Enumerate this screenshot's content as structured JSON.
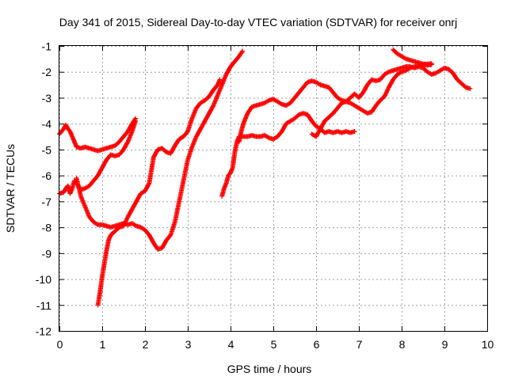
{
  "chart_data": {
    "type": "scatter",
    "title": "Day 341 of 2015, Sidereal Day-to-day VTEC variation (SDTVAR) for receiver onrj",
    "xlabel": "GPS time / hours",
    "ylabel": "SDTVAR / TECUs",
    "xlim": [
      0,
      10
    ],
    "ylim": [
      -12,
      -1
    ],
    "xticks": [
      "0",
      "1",
      "2",
      "3",
      "4",
      "5",
      "6",
      "7",
      "8",
      "9",
      "10"
    ],
    "yticks": [
      "-12",
      "-11",
      "-10",
      "-9",
      "-8",
      "-7",
      "-6",
      "-5",
      "-4",
      "-3",
      "-2",
      "-1"
    ],
    "grid": true,
    "marker": "+",
    "color": "#ff0000",
    "series": [
      {
        "tracks": [
          [
            [
              0.0,
              -4.4
            ],
            [
              0.1,
              -4.2
            ],
            [
              0.15,
              -4.05
            ],
            [
              0.2,
              -4.2
            ],
            [
              0.25,
              -4.3
            ],
            [
              0.3,
              -4.5
            ],
            [
              0.35,
              -4.7
            ],
            [
              0.4,
              -4.9
            ],
            [
              0.5,
              -4.95
            ],
            [
              0.6,
              -4.9
            ],
            [
              0.7,
              -4.95
            ],
            [
              0.8,
              -5.0
            ],
            [
              0.9,
              -5.05
            ],
            [
              1.0,
              -5.0
            ],
            [
              1.1,
              -4.95
            ],
            [
              1.2,
              -4.9
            ],
            [
              1.3,
              -4.85
            ],
            [
              1.4,
              -4.7
            ],
            [
              1.5,
              -4.5
            ],
            [
              1.6,
              -4.3
            ],
            [
              1.7,
              -4.0
            ],
            [
              1.78,
              -3.8
            ]
          ],
          [
            [
              0.0,
              -6.7
            ],
            [
              0.1,
              -6.65
            ],
            [
              0.15,
              -6.5
            ],
            [
              0.2,
              -6.4
            ],
            [
              0.25,
              -6.7
            ],
            [
              0.3,
              -6.5
            ],
            [
              0.35,
              -6.2
            ],
            [
              0.4,
              -6.3
            ],
            [
              0.5,
              -6.55
            ],
            [
              0.6,
              -6.5
            ],
            [
              0.7,
              -6.4
            ],
            [
              0.8,
              -6.2
            ],
            [
              0.9,
              -6.0
            ],
            [
              1.0,
              -5.7
            ],
            [
              1.1,
              -5.4
            ],
            [
              1.2,
              -5.2
            ],
            [
              1.3,
              -5.25
            ],
            [
              1.4,
              -5.2
            ],
            [
              1.5,
              -5.0
            ],
            [
              1.6,
              -4.7
            ],
            [
              1.7,
              -4.3
            ],
            [
              1.78,
              -3.9
            ]
          ],
          [
            [
              0.4,
              -6.1
            ],
            [
              0.5,
              -6.8
            ],
            [
              0.6,
              -7.2
            ],
            [
              0.7,
              -7.6
            ],
            [
              0.8,
              -7.8
            ],
            [
              0.9,
              -7.9
            ],
            [
              1.0,
              -7.9
            ],
            [
              1.1,
              -7.95
            ],
            [
              1.2,
              -8.0
            ],
            [
              1.3,
              -7.95
            ],
            [
              1.4,
              -7.9
            ],
            [
              1.5,
              -7.85
            ],
            [
              1.6,
              -7.9
            ],
            [
              1.7,
              -7.85
            ],
            [
              1.8,
              -7.95
            ],
            [
              1.9,
              -8.0
            ],
            [
              2.0,
              -8.1
            ],
            [
              2.1,
              -8.3
            ],
            [
              2.2,
              -8.6
            ],
            [
              2.3,
              -8.85
            ],
            [
              2.4,
              -8.8
            ],
            [
              2.5,
              -8.5
            ],
            [
              2.6,
              -8.3
            ],
            [
              2.7,
              -7.8
            ],
            [
              2.8,
              -7.0
            ],
            [
              2.9,
              -6.2
            ],
            [
              3.0,
              -5.4
            ],
            [
              3.1,
              -4.9
            ],
            [
              3.2,
              -4.5
            ],
            [
              3.3,
              -4.2
            ],
            [
              3.4,
              -3.9
            ],
            [
              3.5,
              -3.6
            ],
            [
              3.6,
              -3.3
            ],
            [
              3.7,
              -2.9
            ],
            [
              3.8,
              -2.5
            ],
            [
              3.9,
              -2.1
            ],
            [
              4.0,
              -1.8
            ],
            [
              4.1,
              -1.6
            ],
            [
              4.2,
              -1.4
            ],
            [
              4.28,
              -1.2
            ]
          ],
          [
            [
              0.9,
              -11.0
            ],
            [
              0.95,
              -10.5
            ],
            [
              1.0,
              -9.9
            ],
            [
              1.05,
              -9.4
            ],
            [
              1.1,
              -8.9
            ],
            [
              1.15,
              -8.5
            ],
            [
              1.2,
              -8.3
            ],
            [
              1.3,
              -8.15
            ],
            [
              1.4,
              -8.0
            ],
            [
              1.5,
              -7.95
            ],
            [
              1.6,
              -7.6
            ],
            [
              1.7,
              -7.3
            ],
            [
              1.8,
              -7.0
            ],
            [
              1.9,
              -6.7
            ],
            [
              2.0,
              -6.6
            ],
            [
              2.1,
              -6.3
            ],
            [
              2.15,
              -5.8
            ],
            [
              2.2,
              -5.3
            ],
            [
              2.3,
              -5.0
            ],
            [
              2.4,
              -4.95
            ],
            [
              2.5,
              -5.1
            ],
            [
              2.6,
              -5.15
            ],
            [
              2.7,
              -4.85
            ],
            [
              2.8,
              -4.6
            ],
            [
              2.9,
              -4.5
            ],
            [
              3.0,
              -4.3
            ],
            [
              3.1,
              -3.8
            ],
            [
              3.2,
              -3.4
            ],
            [
              3.3,
              -3.2
            ],
            [
              3.4,
              -3.1
            ],
            [
              3.5,
              -2.95
            ],
            [
              3.6,
              -2.7
            ],
            [
              3.7,
              -2.5
            ],
            [
              3.75,
              -2.3
            ]
          ],
          [
            [
              3.8,
              -6.8
            ],
            [
              3.85,
              -6.5
            ],
            [
              3.9,
              -6.3
            ],
            [
              3.95,
              -6.0
            ],
            [
              4.0,
              -5.9
            ],
            [
              4.05,
              -5.7
            ],
            [
              4.1,
              -5.1
            ],
            [
              4.15,
              -4.7
            ],
            [
              4.2,
              -4.5
            ],
            [
              4.3,
              -4.5
            ],
            [
              4.4,
              -4.5
            ],
            [
              4.5,
              -4.45
            ],
            [
              4.6,
              -4.5
            ],
            [
              4.7,
              -4.5
            ],
            [
              4.8,
              -4.45
            ],
            [
              4.9,
              -4.55
            ],
            [
              5.0,
              -4.6
            ],
            [
              5.1,
              -4.5
            ],
            [
              5.2,
              -4.3
            ],
            [
              5.3,
              -4.0
            ],
            [
              5.4,
              -3.9
            ],
            [
              5.5,
              -3.8
            ],
            [
              5.6,
              -3.65
            ],
            [
              5.7,
              -3.6
            ],
            [
              5.8,
              -3.65
            ],
            [
              5.9,
              -3.9
            ],
            [
              6.0,
              -4.1
            ],
            [
              6.1,
              -4.2
            ],
            [
              6.2,
              -4.35
            ],
            [
              6.3,
              -4.3
            ],
            [
              6.4,
              -4.35
            ],
            [
              6.5,
              -4.3
            ],
            [
              6.6,
              -4.35
            ],
            [
              6.7,
              -4.3
            ],
            [
              6.8,
              -4.35
            ],
            [
              6.9,
              -4.3
            ]
          ],
          [
            [
              4.2,
              -4.7
            ],
            [
              4.25,
              -4.3
            ],
            [
              4.3,
              -4.0
            ],
            [
              4.35,
              -3.8
            ],
            [
              4.4,
              -3.6
            ],
            [
              4.5,
              -3.35
            ],
            [
              4.6,
              -3.3
            ],
            [
              4.7,
              -3.25
            ],
            [
              4.8,
              -3.2
            ],
            [
              4.9,
              -3.1
            ],
            [
              5.0,
              -3.05
            ],
            [
              5.1,
              -3.15
            ],
            [
              5.2,
              -3.25
            ],
            [
              5.3,
              -3.3
            ],
            [
              5.4,
              -3.2
            ],
            [
              5.5,
              -3.0
            ],
            [
              5.6,
              -2.8
            ],
            [
              5.7,
              -2.6
            ],
            [
              5.8,
              -2.4
            ],
            [
              5.9,
              -2.35
            ],
            [
              6.0,
              -2.4
            ],
            [
              6.1,
              -2.5
            ],
            [
              6.2,
              -2.55
            ],
            [
              6.3,
              -2.6
            ],
            [
              6.4,
              -2.8
            ],
            [
              6.5,
              -3.0
            ],
            [
              6.6,
              -3.1
            ],
            [
              6.7,
              -3.15
            ],
            [
              6.8,
              -3.2
            ],
            [
              6.9,
              -3.3
            ],
            [
              7.0,
              -3.4
            ],
            [
              7.1,
              -3.5
            ],
            [
              7.2,
              -3.6
            ],
            [
              7.3,
              -3.55
            ],
            [
              7.4,
              -3.3
            ],
            [
              7.5,
              -3.1
            ],
            [
              7.6,
              -2.95
            ],
            [
              7.7,
              -2.6
            ],
            [
              7.8,
              -2.3
            ],
            [
              7.9,
              -2.1
            ],
            [
              8.0,
              -2.0
            ],
            [
              8.1,
              -1.95
            ],
            [
              8.2,
              -1.85
            ],
            [
              8.3,
              -1.8
            ],
            [
              8.4,
              -1.75
            ],
            [
              8.5,
              -1.7
            ],
            [
              8.6,
              -1.7
            ],
            [
              8.7,
              -1.68
            ]
          ],
          [
            [
              5.9,
              -4.4
            ],
            [
              6.0,
              -4.5
            ],
            [
              6.1,
              -4.2
            ],
            [
              6.2,
              -3.9
            ],
            [
              6.3,
              -3.75
            ],
            [
              6.4,
              -3.6
            ],
            [
              6.5,
              -3.4
            ],
            [
              6.6,
              -3.2
            ],
            [
              6.7,
              -3.15
            ],
            [
              6.8,
              -3.0
            ],
            [
              6.9,
              -2.85
            ],
            [
              7.0,
              -3.0
            ],
            [
              7.1,
              -2.8
            ],
            [
              7.2,
              -2.5
            ],
            [
              7.3,
              -2.3
            ],
            [
              7.4,
              -2.35
            ],
            [
              7.5,
              -2.3
            ],
            [
              7.6,
              -2.1
            ],
            [
              7.7,
              -2.0
            ],
            [
              7.8,
              -1.95
            ],
            [
              7.9,
              -1.9
            ],
            [
              8.0,
              -1.85
            ],
            [
              8.1,
              -1.8
            ],
            [
              8.2,
              -1.8
            ],
            [
              8.3,
              -1.85
            ],
            [
              8.4,
              -1.8
            ],
            [
              8.5,
              -1.85
            ],
            [
              8.6,
              -2.0
            ],
            [
              8.7,
              -2.1
            ],
            [
              8.8,
              -2.05
            ],
            [
              8.9,
              -1.95
            ],
            [
              9.0,
              -1.85
            ],
            [
              9.1,
              -1.9
            ],
            [
              9.2,
              -2.05
            ],
            [
              9.3,
              -2.3
            ],
            [
              9.4,
              -2.45
            ],
            [
              9.5,
              -2.6
            ],
            [
              9.6,
              -2.65
            ]
          ],
          [
            [
              7.8,
              -1.15
            ],
            [
              7.9,
              -1.3
            ],
            [
              8.0,
              -1.4
            ],
            [
              8.1,
              -1.5
            ],
            [
              8.2,
              -1.55
            ],
            [
              8.3,
              -1.6
            ],
            [
              8.4,
              -1.65
            ],
            [
              8.5,
              -1.7
            ],
            [
              8.6,
              -1.75
            ],
            [
              8.7,
              -1.72
            ]
          ]
        ]
      }
    ]
  }
}
